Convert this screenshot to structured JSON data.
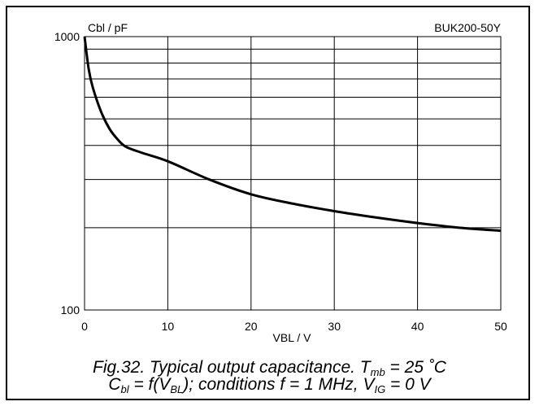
{
  "chart_data": {
    "type": "line",
    "ylabel": "Cbl / pF",
    "xlabel": "VBL / V",
    "annotation": "BUK200-50Y",
    "xlim": [
      0,
      50
    ],
    "ylim": [
      100,
      1000
    ],
    "yscale": "log",
    "grid": true,
    "x_ticks": [
      "0",
      "10",
      "20",
      "30",
      "40",
      "50"
    ],
    "y_ticks": [
      "100",
      "1000"
    ],
    "series": [
      {
        "x": [
          0,
          0.5,
          1,
          2,
          3,
          4,
          5,
          7,
          10,
          15,
          20,
          25,
          30,
          35,
          40,
          45,
          50
        ],
        "values": [
          1000,
          760,
          650,
          530,
          460,
          420,
          395,
          375,
          350,
          300,
          265,
          245,
          230,
          218,
          208,
          200,
          195
        ]
      }
    ]
  },
  "caption": {
    "line1_prefix": "Fig.32.   Typical output capacitance.  T",
    "line1_sub": "mb",
    "line1_suffix": " = 25 ˚C",
    "line2_a": "C",
    "line2_a_sub": "bl",
    "line2_b": " = f(V",
    "line2_b_sub": "BL",
    "line2_c": "); conditions f = 1 MHz, V",
    "line2_c_sub": "IG",
    "line2_d": " = 0 V"
  }
}
